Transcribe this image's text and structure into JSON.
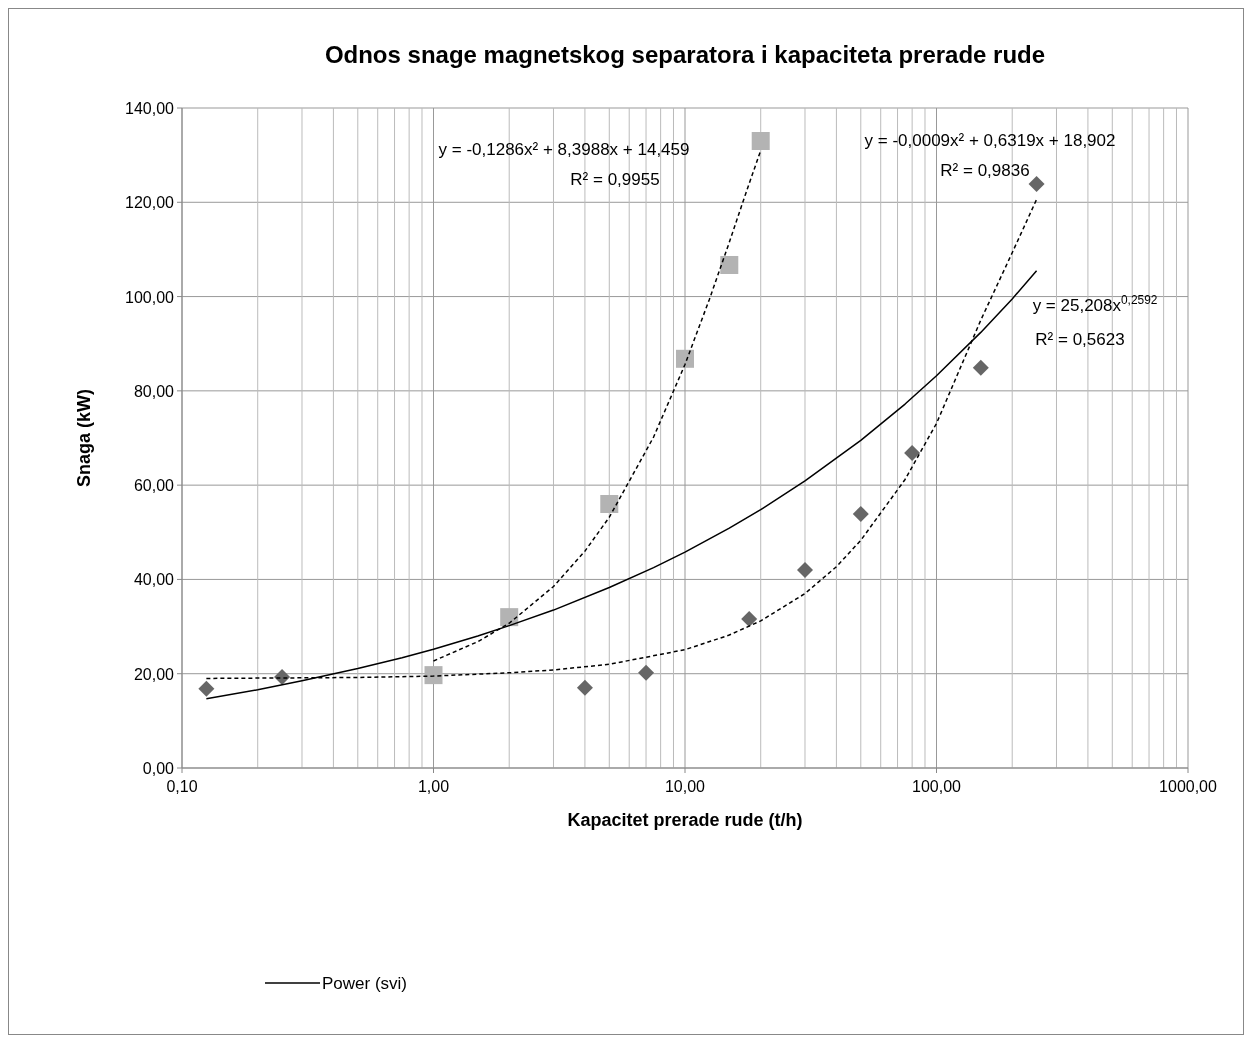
{
  "chart_data": {
    "type": "scatter",
    "title": "Odnos snage magnetskog separatora i kapaciteta prerade rude",
    "xlabel": "Kapacitet prerade rude (t/h)",
    "ylabel": "Snaga (kW)",
    "log": "x",
    "grid": true,
    "legend": "bottom",
    "xlim": [
      0.1,
      1000
    ],
    "xticks": [
      {
        "value": 0.1,
        "label": "0,10"
      },
      {
        "value": 1,
        "label": "1,00"
      },
      {
        "value": 10,
        "label": "10,00"
      },
      {
        "value": 100,
        "label": "100,00"
      },
      {
        "value": 1000,
        "label": "1000,00"
      }
    ],
    "ylim": [
      0,
      140
    ],
    "yticks": [
      {
        "value": 0,
        "label": "0,00"
      },
      {
        "value": 20,
        "label": "20,00"
      },
      {
        "value": 40,
        "label": "40,00"
      },
      {
        "value": 60,
        "label": "60,00"
      },
      {
        "value": 80,
        "label": "80,00"
      },
      {
        "value": 100,
        "label": "100,00"
      },
      {
        "value": 120,
        "label": "120,00"
      },
      {
        "value": 140,
        "label": "140,00"
      }
    ],
    "series": [
      {
        "type": "scatter",
        "marker": "diamond",
        "color": "#666666",
        "x": [
          0.125,
          0.25,
          4,
          7,
          18,
          30,
          50,
          80,
          150,
          250
        ],
        "values": [
          16.8,
          19.3,
          17,
          20.2,
          31.6,
          42,
          53.9,
          66.8,
          84.9,
          123.9
        ]
      },
      {
        "type": "scatter",
        "marker": "square",
        "color": "#b3b3b3",
        "x": [
          1,
          2,
          5,
          10,
          15,
          20
        ],
        "values": [
          19.7,
          32,
          56,
          86.8,
          106.7,
          133
        ]
      },
      {
        "type": "line",
        "line_style": "dashed",
        "marker": "none",
        "color": "#000000",
        "x": [
          0.125,
          0.25,
          0.5,
          1,
          2,
          3,
          5,
          10,
          15,
          20,
          30,
          40,
          50,
          75,
          100,
          150,
          200,
          250
        ],
        "values": [
          19,
          19.1,
          19.2,
          19.5,
          20.2,
          20.8,
          22,
          25.1,
          28.2,
          31.2,
          37,
          42.7,
          48.3,
          61.2,
          73.1,
          95,
          109.3,
          120.6
        ]
      },
      {
        "type": "line",
        "line_style": "dashed",
        "marker": "none",
        "color": "#000000",
        "x": [
          1,
          1.5,
          2,
          3,
          4,
          5,
          7.5,
          10,
          12.5,
          15,
          17.5,
          20
        ],
        "values": [
          22.7,
          26.8,
          30.7,
          38.5,
          46,
          53.2,
          70.2,
          85.6,
          99.4,
          111.5,
          122.1,
          131
        ]
      },
      {
        "type": "line",
        "name": "Power (svi)",
        "line_style": "solid",
        "marker": "none",
        "color": "#000000",
        "x": [
          0.125,
          0.2,
          0.3,
          0.5,
          0.75,
          1,
          1.5,
          2,
          3,
          5,
          7.5,
          10,
          15,
          20,
          30,
          50,
          75,
          100,
          150,
          200,
          250
        ],
        "values": [
          14.7,
          16.6,
          18.5,
          21.1,
          23.4,
          25.2,
          28,
          30.2,
          33.5,
          38.3,
          42.5,
          45.8,
          50.9,
          54.8,
          60.9,
          69.5,
          77.2,
          83.2,
          92.4,
          99.5,
          105.5
        ]
      }
    ],
    "annotations": [
      "y = -0,1286x² + 8,3988x + 14,459",
      "R² = 0,9955",
      "y = -0,0009x² + 0,6319x + 18,902",
      "R² = 0,9836",
      "y = 25,208x$^{0,2592}$",
      "R² = 0,5623"
    ]
  }
}
